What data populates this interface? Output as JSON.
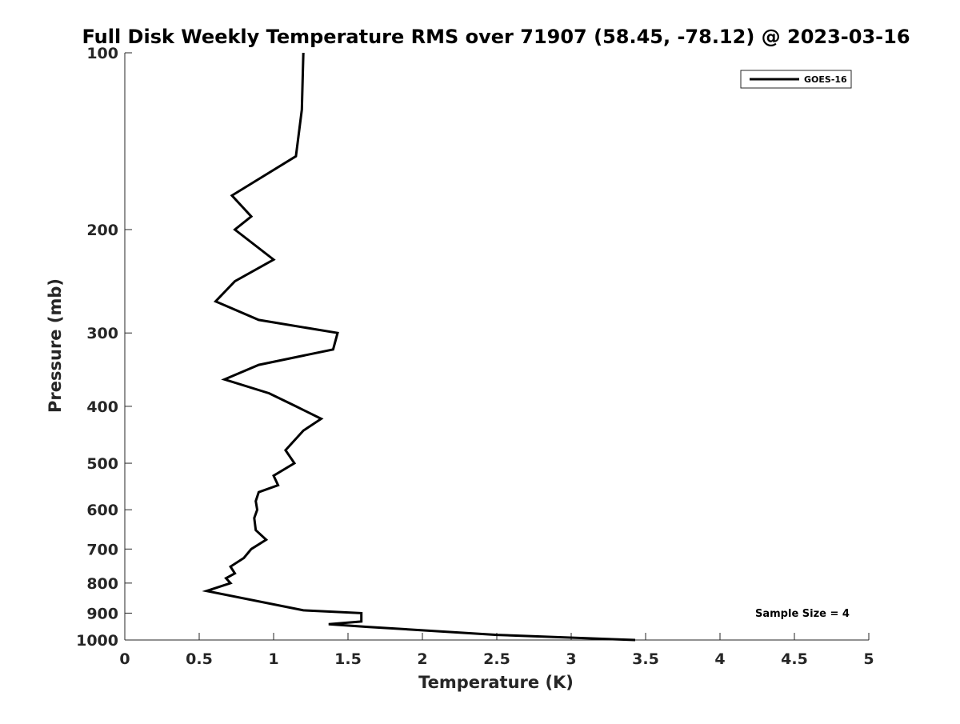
{
  "chart_data": {
    "type": "line",
    "title": "Full Disk Weekly Temperature RMS over 71907 (58.45, -78.12) @ 2023-03-16",
    "xlabel": "Temperature (K)",
    "ylabel": "Pressure (mb)",
    "xlim": [
      0,
      5
    ],
    "ylim": [
      100,
      1000
    ],
    "y_scale": "log",
    "y_reversed": true,
    "x_ticks": [
      "0",
      "0.5",
      "1",
      "1.5",
      "2",
      "2.5",
      "3",
      "3.5",
      "4",
      "4.5",
      "5"
    ],
    "x_tick_values": [
      0,
      0.5,
      1,
      1.5,
      2,
      2.5,
      3,
      3.5,
      4,
      4.5,
      5
    ],
    "y_ticks": [
      "100",
      "200",
      "300",
      "400",
      "500",
      "600",
      "700",
      "800",
      "900",
      "1000"
    ],
    "y_tick_values": [
      100,
      200,
      300,
      400,
      500,
      600,
      700,
      800,
      900,
      1000
    ],
    "grid": false,
    "legend_position": "top-right",
    "series": [
      {
        "name": "GOES-16",
        "color": "#000000",
        "points": [
          [
            1.2,
            100
          ],
          [
            1.19,
            125
          ],
          [
            1.15,
            150
          ],
          [
            0.72,
            175
          ],
          [
            0.85,
            190
          ],
          [
            0.74,
            200
          ],
          [
            1.0,
            225
          ],
          [
            0.74,
            245
          ],
          [
            0.61,
            265
          ],
          [
            0.9,
            285
          ],
          [
            1.43,
            300
          ],
          [
            1.4,
            320
          ],
          [
            0.9,
            340
          ],
          [
            0.67,
            360
          ],
          [
            0.97,
            380
          ],
          [
            1.15,
            400
          ],
          [
            1.32,
            420
          ],
          [
            1.2,
            440
          ],
          [
            1.08,
            475
          ],
          [
            1.14,
            500
          ],
          [
            1.0,
            525
          ],
          [
            1.03,
            545
          ],
          [
            0.9,
            560
          ],
          [
            0.88,
            580
          ],
          [
            0.89,
            600
          ],
          [
            0.87,
            620
          ],
          [
            0.88,
            650
          ],
          [
            0.95,
            675
          ],
          [
            0.85,
            700
          ],
          [
            0.8,
            725
          ],
          [
            0.71,
            750
          ],
          [
            0.74,
            770
          ],
          [
            0.68,
            785
          ],
          [
            0.71,
            800
          ],
          [
            0.55,
            825
          ],
          [
            1.2,
            890
          ],
          [
            1.59,
            900
          ],
          [
            1.59,
            930
          ],
          [
            1.37,
            940
          ],
          [
            1.63,
            950
          ],
          [
            2.5,
            980
          ],
          [
            3.43,
            1000
          ]
        ]
      }
    ],
    "annotations": [
      "Sample Size = 4"
    ]
  }
}
